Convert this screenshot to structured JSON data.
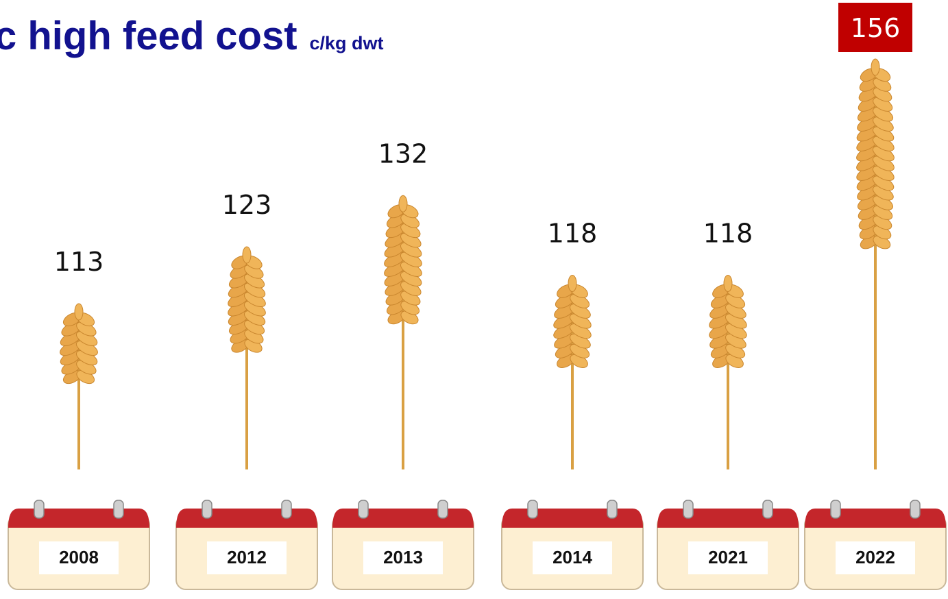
{
  "chart_data": {
    "type": "pictograph",
    "title": "c high feed cost",
    "subtitle": "c/kg dwt",
    "categories": [
      "2008",
      "2012",
      "2013",
      "2014",
      "2021",
      "2022"
    ],
    "values": [
      113,
      123,
      132,
      118,
      118,
      156
    ],
    "color": "#e0a23c"
  }
}
